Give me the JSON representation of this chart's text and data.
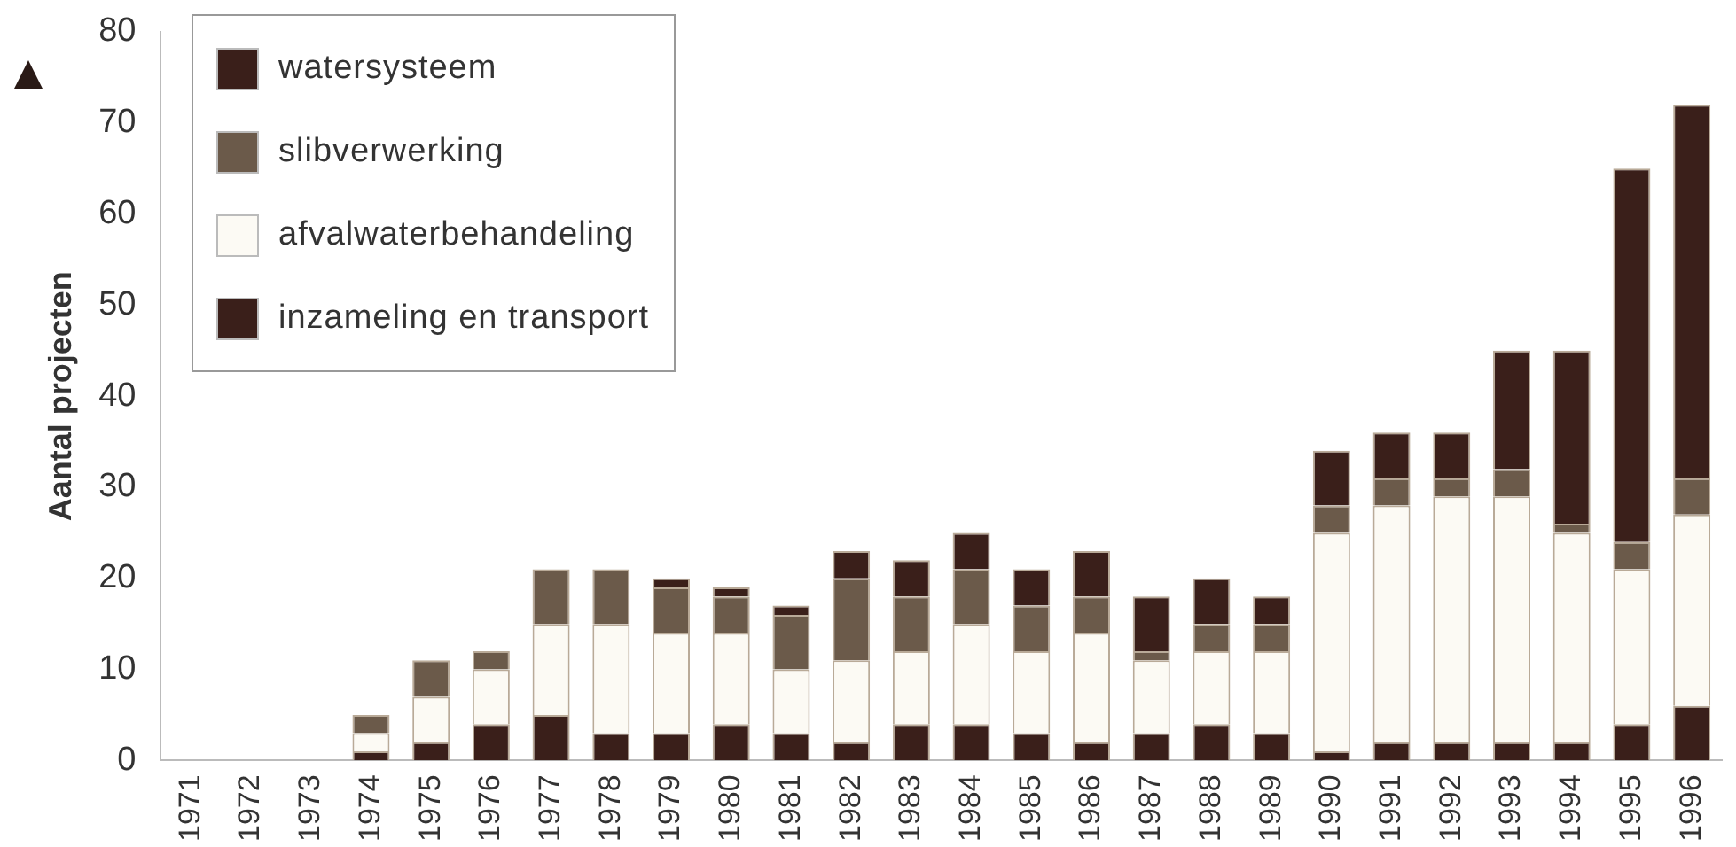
{
  "chart_data": {
    "type": "bar",
    "stacked": true,
    "ylabel": "Aantal projecten",
    "categories": [
      "1971",
      "1972",
      "1973",
      "1974",
      "1975",
      "1976",
      "1977",
      "1978",
      "1979",
      "1980",
      "1981",
      "1982",
      "1983",
      "1984",
      "1985",
      "1986",
      "1987",
      "1988",
      "1989",
      "1990",
      "1991",
      "1992",
      "1993",
      "1994",
      "1995",
      "1996"
    ],
    "series": [
      {
        "name": "inzameling en transport",
        "color": "#3a1f1a",
        "values": [
          0,
          0,
          0,
          1,
          2,
          4,
          5,
          3,
          3,
          4,
          3,
          2,
          4,
          4,
          3,
          2,
          3,
          4,
          3,
          1,
          2,
          2,
          2,
          2,
          4,
          6
        ]
      },
      {
        "name": "afvalwaterbehandeling",
        "color": "#fcfaf4",
        "values": [
          0,
          0,
          0,
          2,
          5,
          6,
          10,
          12,
          11,
          10,
          7,
          9,
          8,
          11,
          9,
          12,
          8,
          8,
          9,
          24,
          26,
          27,
          27,
          23,
          17,
          21
        ]
      },
      {
        "name": "slibverwerking",
        "color": "#6b5a4a",
        "values": [
          0,
          0,
          0,
          2,
          4,
          2,
          6,
          6,
          5,
          4,
          6,
          9,
          6,
          6,
          5,
          4,
          1,
          3,
          3,
          3,
          3,
          2,
          3,
          1,
          3,
          4
        ]
      },
      {
        "name": "watersysteem",
        "color": "#3a1f1a",
        "values": [
          0,
          0,
          0,
          0,
          0,
          0,
          0,
          0,
          1,
          1,
          1,
          3,
          4,
          4,
          4,
          5,
          6,
          5,
          3,
          6,
          5,
          5,
          13,
          19,
          41,
          41
        ]
      }
    ],
    "ylim": [
      0,
      80
    ],
    "yticks": [
      0,
      10,
      20,
      30,
      40,
      50,
      60,
      70,
      80
    ],
    "grid": false,
    "legend": "top left"
  }
}
